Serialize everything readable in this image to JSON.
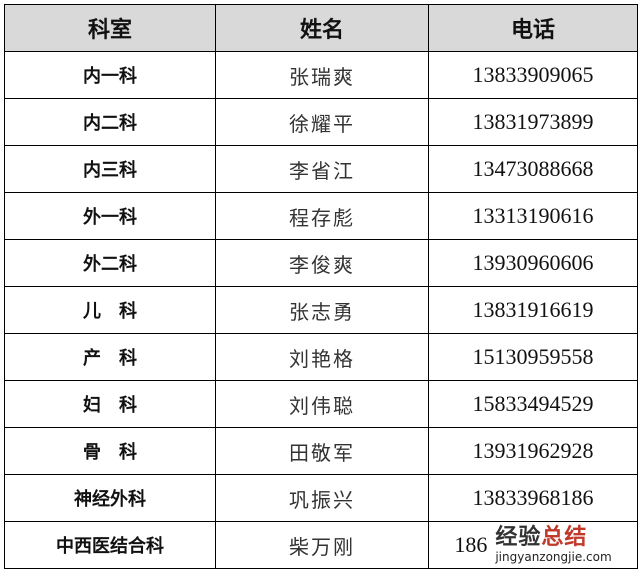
{
  "headers": [
    "科室",
    "姓名",
    "电话"
  ],
  "rows": [
    {
      "dept": "内一科",
      "name": "张瑞爽",
      "phone": "13833909065"
    },
    {
      "dept": "内二科",
      "name": "徐耀平",
      "phone": "13831973899"
    },
    {
      "dept": "内三科",
      "name": "李省江",
      "phone": "13473088668"
    },
    {
      "dept": "外一科",
      "name": "程存彪",
      "phone": "13313190616"
    },
    {
      "dept": "外二科",
      "name": "李俊爽",
      "phone": "13930960606"
    },
    {
      "dept": "儿　科",
      "name": "张志勇",
      "phone": "13831916619"
    },
    {
      "dept": "产　科",
      "name": "刘艳格",
      "phone": "15130959558"
    },
    {
      "dept": "妇　科",
      "name": "刘伟聪",
      "phone": "15833494529"
    },
    {
      "dept": "骨　科",
      "name": "田敬军",
      "phone": "13931962928"
    },
    {
      "dept": "神经外科",
      "name": "巩振兴",
      "phone": "13833968186"
    },
    {
      "dept": "中西医结合科",
      "name": "柴万刚",
      "phone": "186"
    }
  ],
  "watermark": {
    "text_a": "经验",
    "text_b": "总结",
    "url": "jingyanzongjie.com"
  }
}
